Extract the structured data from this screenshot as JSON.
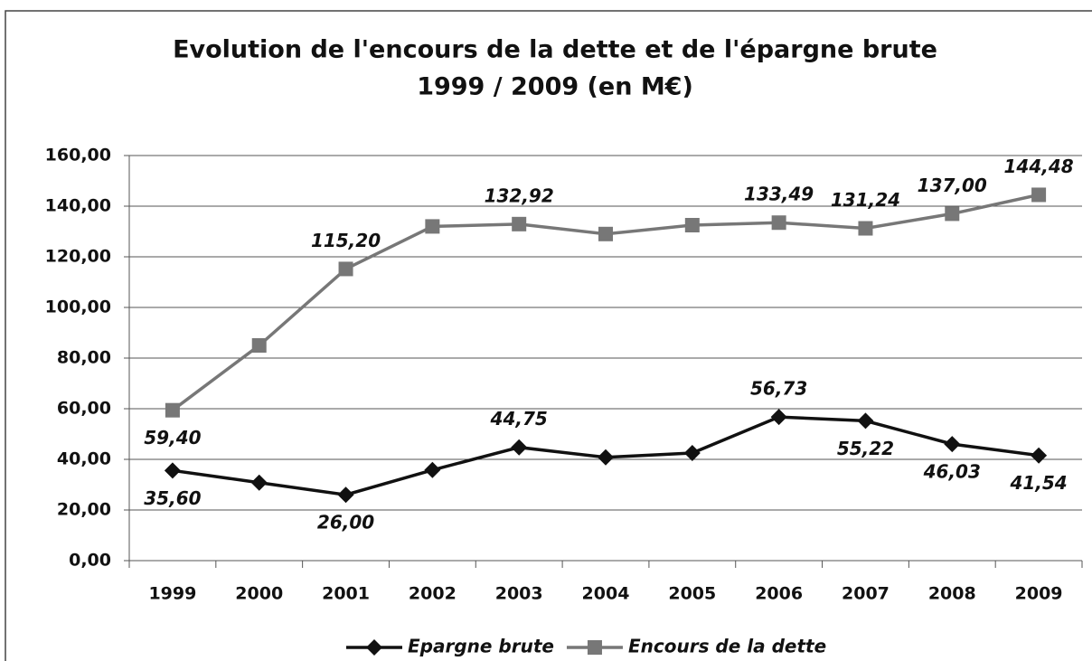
{
  "chart_data": {
    "type": "line",
    "title": "Evolution de l'encours de la dette et de l'épargne brute",
    "subtitle": "1999 / 2009 (en M€)",
    "categories": [
      "1999",
      "2000",
      "2001",
      "2002",
      "2003",
      "2004",
      "2005",
      "2006",
      "2007",
      "2008",
      "2009"
    ],
    "series": [
      {
        "name": "Epargne brute",
        "color": "#111111",
        "marker": "diamond",
        "values": [
          35.6,
          30.8,
          26.0,
          35.8,
          44.75,
          40.8,
          42.5,
          56.73,
          55.22,
          46.03,
          41.54
        ],
        "value_labels": [
          "35,60",
          null,
          "26,00",
          null,
          "44,75",
          null,
          null,
          "56,73",
          "55,22",
          "46,03",
          "41,54"
        ]
      },
      {
        "name": "Encours de la dette",
        "color": "#777777",
        "marker": "square",
        "values": [
          59.4,
          85.0,
          115.2,
          132.0,
          132.92,
          129.0,
          132.5,
          133.49,
          131.24,
          137.0,
          144.48
        ],
        "value_labels": [
          "59,40",
          null,
          "115,20",
          null,
          "132,92",
          null,
          null,
          "133,49",
          "131,24",
          "137,00",
          "144,48"
        ]
      }
    ],
    "ylim": [
      0,
      160
    ],
    "yticks": [
      {
        "value": 0,
        "label": "0,00"
      },
      {
        "value": 20,
        "label": "20,00"
      },
      {
        "value": 40,
        "label": "40,00"
      },
      {
        "value": 60,
        "label": "60,00"
      },
      {
        "value": 80,
        "label": "80,00"
      },
      {
        "value": 100,
        "label": "100,00"
      },
      {
        "value": 120,
        "label": "120,00"
      },
      {
        "value": 140,
        "label": "140,00"
      },
      {
        "value": 160,
        "label": "160,00"
      }
    ],
    "grid": true,
    "legend": "bottom"
  }
}
